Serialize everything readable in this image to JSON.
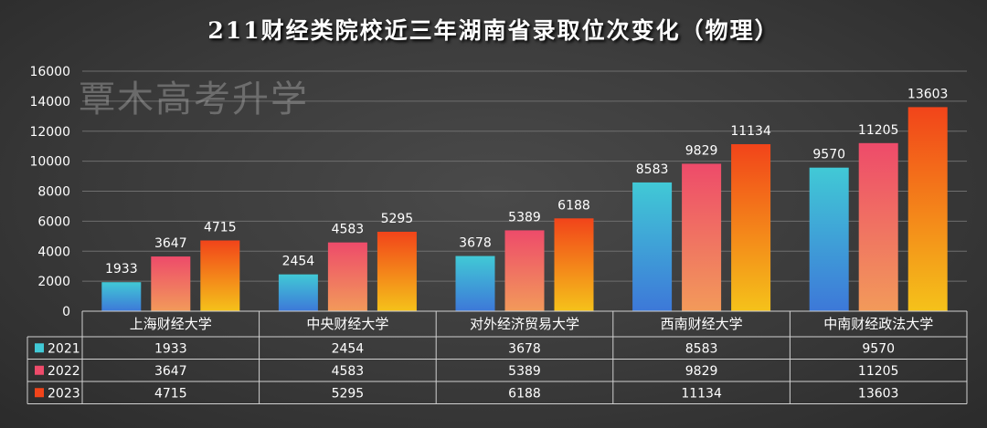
{
  "title": "211财经类院校近三年湖南省录取位次变化（物理）",
  "watermark": "覃木高考升学",
  "colors": {
    "2021": [
      "#41c9d6",
      "#3d78d8"
    ],
    "2022": [
      "#ee4b6a",
      "#f29a5a"
    ],
    "2023": [
      "#f2441a",
      "#f5c21a"
    ]
  },
  "chart_data": {
    "type": "bar",
    "title": "211财经类院校近三年湖南省录取位次变化（物理）",
    "xlabel": "",
    "ylabel": "",
    "categories": [
      "上海财经大学",
      "中央财经大学",
      "对外经济贸易大学",
      "西南财经大学",
      "中南财经政法大学"
    ],
    "series": [
      {
        "name": "2021",
        "values": [
          1933,
          2454,
          3678,
          8583,
          9570
        ]
      },
      {
        "name": "2022",
        "values": [
          3647,
          4583,
          5389,
          9829,
          11205
        ]
      },
      {
        "name": "2023",
        "values": [
          4715,
          5295,
          6188,
          11134,
          13603
        ]
      }
    ],
    "ylim": [
      0,
      16000
    ],
    "yticks": [
      0,
      2000,
      4000,
      6000,
      8000,
      10000,
      12000,
      14000,
      16000
    ],
    "grid": true,
    "data_table": true
  }
}
